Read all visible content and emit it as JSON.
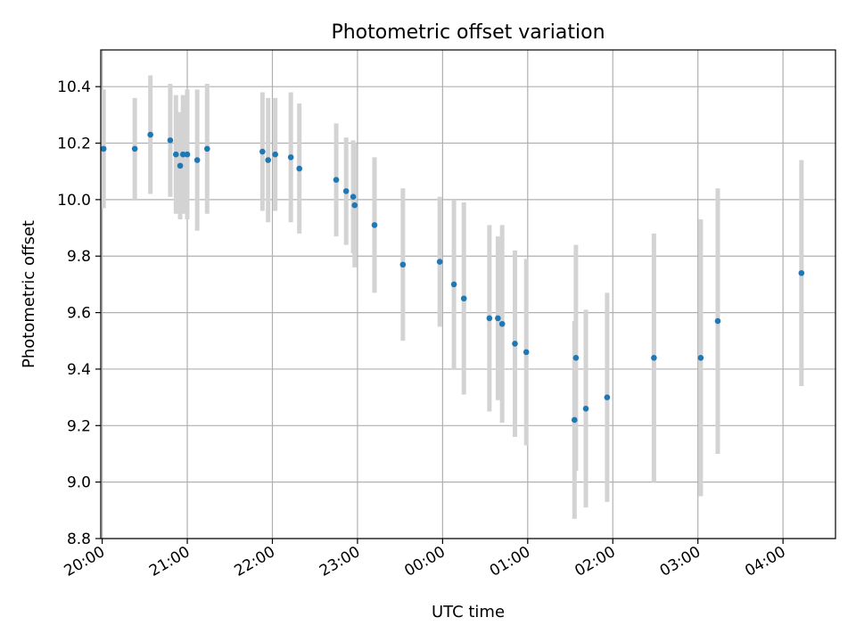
{
  "chart_data": {
    "type": "scatter",
    "title": "Photometric offset variation",
    "xlabel": "UTC time",
    "ylabel": "Photometric offset",
    "xlim": [
      "19:59",
      "04:37"
    ],
    "ylim": [
      8.8,
      10.53
    ],
    "grid": true,
    "x_ticks": [
      "20:00",
      "21:00",
      "22:00",
      "23:00",
      "00:00",
      "01:00",
      "02:00",
      "03:00",
      "04:00"
    ],
    "y_ticks": [
      8.8,
      9.0,
      9.2,
      9.4,
      9.6,
      9.8,
      10.0,
      10.2,
      10.4
    ],
    "point_color": "#1f77b4",
    "errorbar_color": "#d3d3d3",
    "points": [
      {
        "x": "20:01",
        "y": 10.18,
        "err": 0.21
      },
      {
        "x": "20:23",
        "y": 10.18,
        "err": 0.18
      },
      {
        "x": "20:34",
        "y": 10.23,
        "err": 0.21
      },
      {
        "x": "20:48",
        "y": 10.21,
        "err": 0.2
      },
      {
        "x": "20:52",
        "y": 10.16,
        "err": 0.21
      },
      {
        "x": "20:55",
        "y": 10.12,
        "err": 0.19
      },
      {
        "x": "20:57",
        "y": 10.16,
        "err": 0.21
      },
      {
        "x": "21:00",
        "y": 10.16,
        "err": 0.23
      },
      {
        "x": "21:07",
        "y": 10.14,
        "err": 0.25
      },
      {
        "x": "21:14",
        "y": 10.18,
        "err": 0.23
      },
      {
        "x": "21:53",
        "y": 10.17,
        "err": 0.21
      },
      {
        "x": "21:57",
        "y": 10.14,
        "err": 0.22
      },
      {
        "x": "22:02",
        "y": 10.16,
        "err": 0.2
      },
      {
        "x": "22:13",
        "y": 10.15,
        "err": 0.23
      },
      {
        "x": "22:19",
        "y": 10.11,
        "err": 0.23
      },
      {
        "x": "22:45",
        "y": 10.07,
        "err": 0.2
      },
      {
        "x": "22:52",
        "y": 10.03,
        "err": 0.19
      },
      {
        "x": "22:57",
        "y": 10.01,
        "err": 0.2
      },
      {
        "x": "22:58",
        "y": 9.98,
        "err": 0.22
      },
      {
        "x": "23:12",
        "y": 9.91,
        "err": 0.24
      },
      {
        "x": "23:32",
        "y": 9.77,
        "err": 0.27
      },
      {
        "x": "23:58",
        "y": 9.78,
        "err": 0.23
      },
      {
        "x": "00:08",
        "y": 9.7,
        "err": 0.3
      },
      {
        "x": "00:15",
        "y": 9.65,
        "err": 0.34
      },
      {
        "x": "00:33",
        "y": 9.58,
        "err": 0.33
      },
      {
        "x": "00:39",
        "y": 9.58,
        "err": 0.29
      },
      {
        "x": "00:42",
        "y": 9.56,
        "err": 0.35
      },
      {
        "x": "00:51",
        "y": 9.49,
        "err": 0.33
      },
      {
        "x": "00:59",
        "y": 9.46,
        "err": 0.33
      },
      {
        "x": "01:33",
        "y": 9.22,
        "err": 0.35
      },
      {
        "x": "01:34",
        "y": 9.44,
        "err": 0.4
      },
      {
        "x": "01:41",
        "y": 9.26,
        "err": 0.35
      },
      {
        "x": "01:56",
        "y": 9.3,
        "err": 0.37
      },
      {
        "x": "02:29",
        "y": 9.44,
        "err": 0.44
      },
      {
        "x": "03:02",
        "y": 9.44,
        "err": 0.49
      },
      {
        "x": "03:14",
        "y": 9.57,
        "err": 0.47
      },
      {
        "x": "04:13",
        "y": 9.74,
        "err": 0.4
      }
    ]
  }
}
